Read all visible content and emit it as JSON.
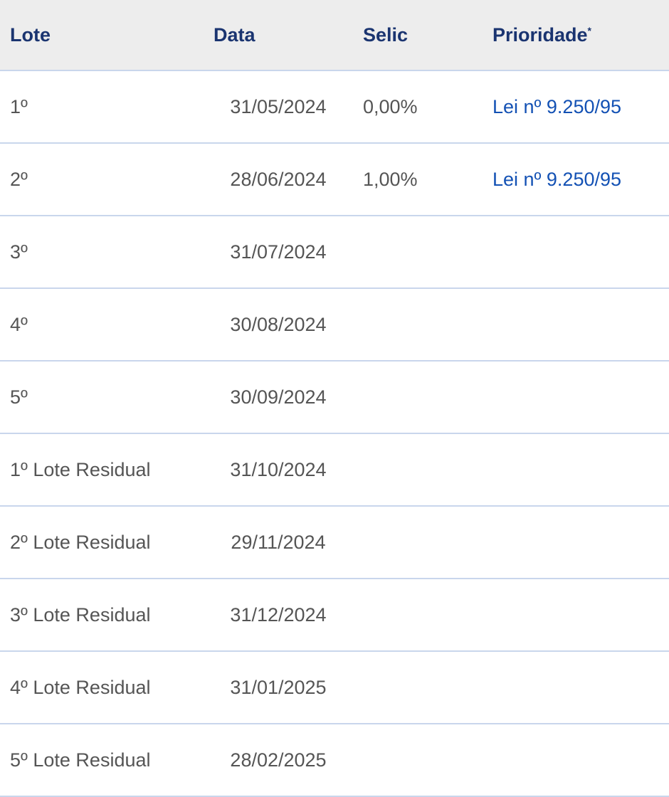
{
  "table": {
    "headers": {
      "lote": "Lote",
      "data": "Data",
      "selic": "Selic",
      "prioridade": "Prioridade",
      "prioridade_mark": "*"
    },
    "rows": [
      {
        "lote": "1º",
        "data": "31/05/2024",
        "selic": "0,00%",
        "prioridade": "Lei nº 9.250/95"
      },
      {
        "lote": "2º",
        "data": "28/06/2024",
        "selic": "1,00%",
        "prioridade": "Lei nº 9.250/95"
      },
      {
        "lote": "3º",
        "data": "31/07/2024",
        "selic": "",
        "prioridade": ""
      },
      {
        "lote": "4º",
        "data": "30/08/2024",
        "selic": "",
        "prioridade": ""
      },
      {
        "lote": "5º",
        "data": "30/09/2024",
        "selic": "",
        "prioridade": ""
      },
      {
        "lote": "1º Lote Residual",
        "data": "31/10/2024",
        "selic": "",
        "prioridade": ""
      },
      {
        "lote": "2º Lote Residual",
        "data": "29/11/2024",
        "selic": "",
        "prioridade": ""
      },
      {
        "lote": "3º Lote Residual",
        "data": "31/12/2024",
        "selic": "",
        "prioridade": ""
      },
      {
        "lote": "4º Lote Residual",
        "data": "31/01/2025",
        "selic": "",
        "prioridade": ""
      },
      {
        "lote": "5º Lote Residual",
        "data": "28/02/2025",
        "selic": "",
        "prioridade": ""
      }
    ]
  },
  "colors": {
    "header_bg": "#ededed",
    "header_text": "#1a3470",
    "link": "#1351b4",
    "border": "#c9d6ec"
  }
}
